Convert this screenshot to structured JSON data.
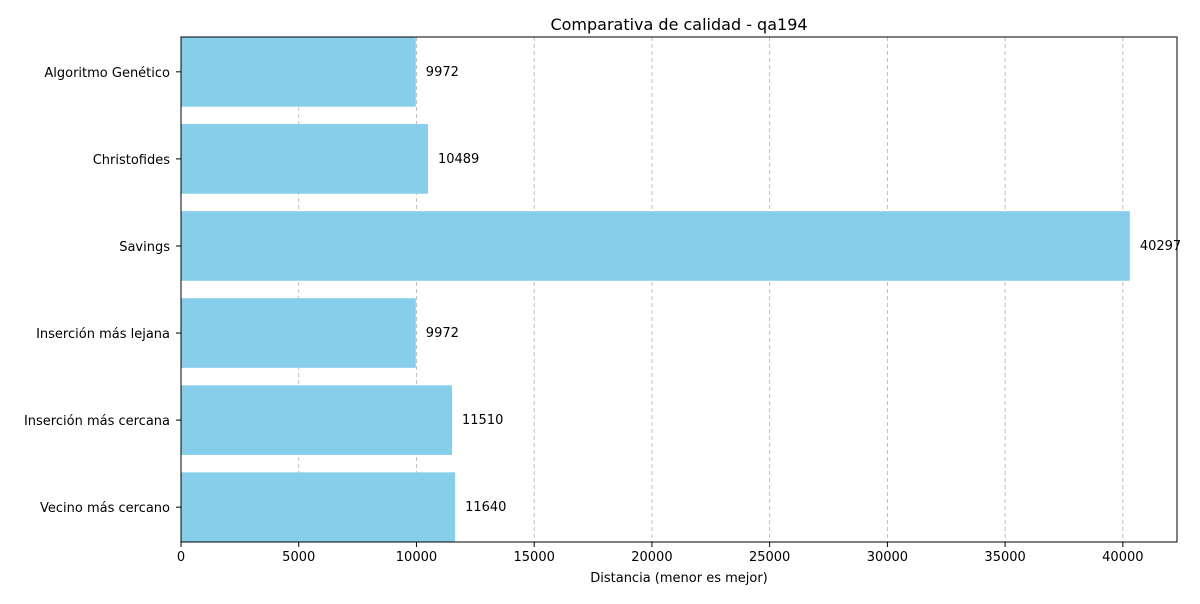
{
  "chart_data": {
    "type": "bar",
    "orientation": "horizontal",
    "title": "Comparativa de calidad - qa194",
    "xlabel": "Distancia (menor es mejor)",
    "ylabel": "",
    "categories": [
      "Vecino más cercano",
      "Inserción más cercana",
      "Inserción más lejana",
      "Savings",
      "Christofides",
      "Algoritmo Genético"
    ],
    "values": [
      11640,
      11510,
      9972,
      40297,
      10489,
      9972
    ],
    "data_labels": [
      "11640",
      "11510",
      "9972",
      "40297",
      "10489",
      "9972"
    ],
    "xlim": [
      0,
      42300
    ],
    "xticks": [
      0,
      5000,
      10000,
      15000,
      20000,
      25000,
      30000,
      35000,
      40000
    ],
    "xtick_labels": [
      "0",
      "5000",
      "10000",
      "15000",
      "20000",
      "25000",
      "30000",
      "35000",
      "40000"
    ],
    "grid": "x, dashed",
    "legend": "none",
    "bar_color": "#87ceeb",
    "grid_color": "#b0b0b0"
  }
}
